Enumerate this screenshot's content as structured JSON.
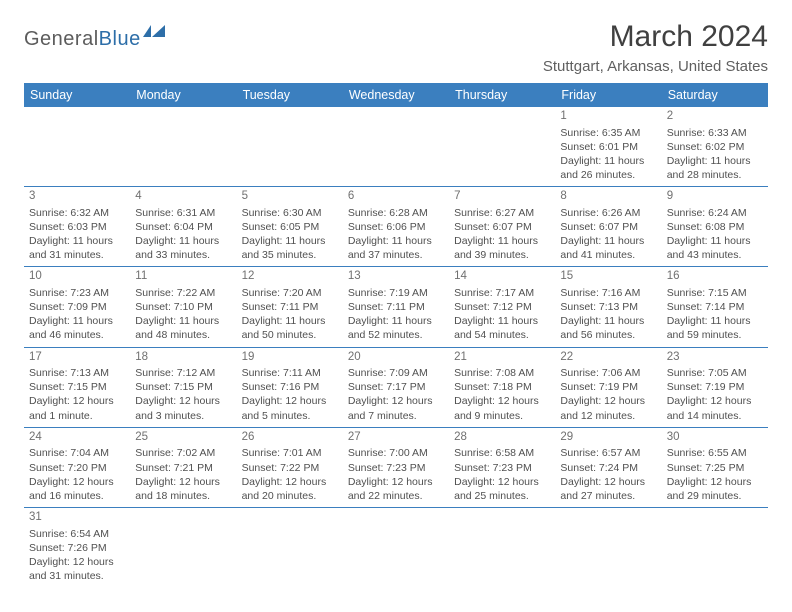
{
  "logo": {
    "general": "General",
    "blue": "Blue"
  },
  "title": "March 2024",
  "location": "Stuttgart, Arkansas, United States",
  "colors": {
    "header_bg": "#3b7fbf",
    "header_text": "#ffffff",
    "rule": "#3b7fbf",
    "body_text": "#505050",
    "title_text": "#404040",
    "logo_gray": "#5c5c5c",
    "logo_blue": "#2d6ea8"
  },
  "dayHeaders": [
    "Sunday",
    "Monday",
    "Tuesday",
    "Wednesday",
    "Thursday",
    "Friday",
    "Saturday"
  ],
  "weeks": [
    [
      null,
      null,
      null,
      null,
      null,
      {
        "n": "1",
        "sr": "6:35 AM",
        "ss": "6:01 PM",
        "dl": "11 hours and 26 minutes."
      },
      {
        "n": "2",
        "sr": "6:33 AM",
        "ss": "6:02 PM",
        "dl": "11 hours and 28 minutes."
      }
    ],
    [
      {
        "n": "3",
        "sr": "6:32 AM",
        "ss": "6:03 PM",
        "dl": "11 hours and 31 minutes."
      },
      {
        "n": "4",
        "sr": "6:31 AM",
        "ss": "6:04 PM",
        "dl": "11 hours and 33 minutes."
      },
      {
        "n": "5",
        "sr": "6:30 AM",
        "ss": "6:05 PM",
        "dl": "11 hours and 35 minutes."
      },
      {
        "n": "6",
        "sr": "6:28 AM",
        "ss": "6:06 PM",
        "dl": "11 hours and 37 minutes."
      },
      {
        "n": "7",
        "sr": "6:27 AM",
        "ss": "6:07 PM",
        "dl": "11 hours and 39 minutes."
      },
      {
        "n": "8",
        "sr": "6:26 AM",
        "ss": "6:07 PM",
        "dl": "11 hours and 41 minutes."
      },
      {
        "n": "9",
        "sr": "6:24 AM",
        "ss": "6:08 PM",
        "dl": "11 hours and 43 minutes."
      }
    ],
    [
      {
        "n": "10",
        "sr": "7:23 AM",
        "ss": "7:09 PM",
        "dl": "11 hours and 46 minutes."
      },
      {
        "n": "11",
        "sr": "7:22 AM",
        "ss": "7:10 PM",
        "dl": "11 hours and 48 minutes."
      },
      {
        "n": "12",
        "sr": "7:20 AM",
        "ss": "7:11 PM",
        "dl": "11 hours and 50 minutes."
      },
      {
        "n": "13",
        "sr": "7:19 AM",
        "ss": "7:11 PM",
        "dl": "11 hours and 52 minutes."
      },
      {
        "n": "14",
        "sr": "7:17 AM",
        "ss": "7:12 PM",
        "dl": "11 hours and 54 minutes."
      },
      {
        "n": "15",
        "sr": "7:16 AM",
        "ss": "7:13 PM",
        "dl": "11 hours and 56 minutes."
      },
      {
        "n": "16",
        "sr": "7:15 AM",
        "ss": "7:14 PM",
        "dl": "11 hours and 59 minutes."
      }
    ],
    [
      {
        "n": "17",
        "sr": "7:13 AM",
        "ss": "7:15 PM",
        "dl": "12 hours and 1 minute."
      },
      {
        "n": "18",
        "sr": "7:12 AM",
        "ss": "7:15 PM",
        "dl": "12 hours and 3 minutes."
      },
      {
        "n": "19",
        "sr": "7:11 AM",
        "ss": "7:16 PM",
        "dl": "12 hours and 5 minutes."
      },
      {
        "n": "20",
        "sr": "7:09 AM",
        "ss": "7:17 PM",
        "dl": "12 hours and 7 minutes."
      },
      {
        "n": "21",
        "sr": "7:08 AM",
        "ss": "7:18 PM",
        "dl": "12 hours and 9 minutes."
      },
      {
        "n": "22",
        "sr": "7:06 AM",
        "ss": "7:19 PM",
        "dl": "12 hours and 12 minutes."
      },
      {
        "n": "23",
        "sr": "7:05 AM",
        "ss": "7:19 PM",
        "dl": "12 hours and 14 minutes."
      }
    ],
    [
      {
        "n": "24",
        "sr": "7:04 AM",
        "ss": "7:20 PM",
        "dl": "12 hours and 16 minutes."
      },
      {
        "n": "25",
        "sr": "7:02 AM",
        "ss": "7:21 PM",
        "dl": "12 hours and 18 minutes."
      },
      {
        "n": "26",
        "sr": "7:01 AM",
        "ss": "7:22 PM",
        "dl": "12 hours and 20 minutes."
      },
      {
        "n": "27",
        "sr": "7:00 AM",
        "ss": "7:23 PM",
        "dl": "12 hours and 22 minutes."
      },
      {
        "n": "28",
        "sr": "6:58 AM",
        "ss": "7:23 PM",
        "dl": "12 hours and 25 minutes."
      },
      {
        "n": "29",
        "sr": "6:57 AM",
        "ss": "7:24 PM",
        "dl": "12 hours and 27 minutes."
      },
      {
        "n": "30",
        "sr": "6:55 AM",
        "ss": "7:25 PM",
        "dl": "12 hours and 29 minutes."
      }
    ],
    [
      {
        "n": "31",
        "sr": "6:54 AM",
        "ss": "7:26 PM",
        "dl": "12 hours and 31 minutes."
      },
      null,
      null,
      null,
      null,
      null,
      null
    ]
  ]
}
